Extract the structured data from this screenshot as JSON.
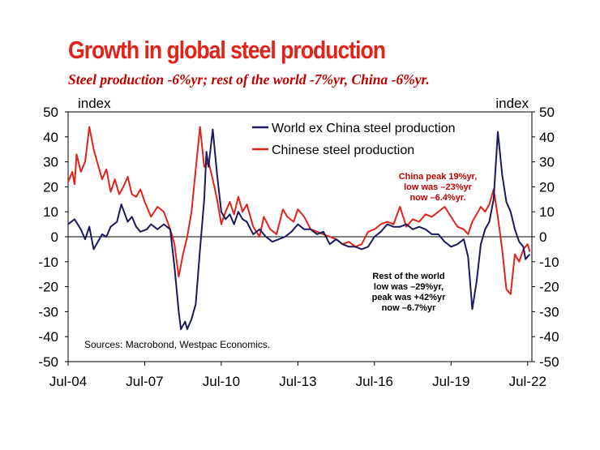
{
  "header": {
    "title": "Growth in global steel production",
    "subtitle": "Steel production -6%yr; rest of the world -7%yr, China -6%yr."
  },
  "chart_data": {
    "type": "line",
    "title": "Growth in global steel production",
    "subtitle": "Steel production -6%yr; rest of the world -7%yr, China -6%yr.",
    "left_axis_unit": "index",
    "right_axis_unit": "index",
    "ylim": [
      -50,
      50
    ],
    "yticks": [
      "50",
      "40",
      "30",
      "20",
      "10",
      "0",
      "-10",
      "-20",
      "-30",
      "-40",
      "-50"
    ],
    "xticks": [
      "Jul-04",
      "Jul-07",
      "Jul-10",
      "Jul-13",
      "Jul-16",
      "Jul-19",
      "Jul-22"
    ],
    "xlim": [
      "2004-07",
      "2022-09"
    ],
    "grid": false,
    "legend_position": "top-right",
    "series": [
      {
        "name": "World ex China steel production",
        "color": "#1a1a5e",
        "points": [
          [
            "2004-07",
            5
          ],
          [
            "2004-10",
            7
          ],
          [
            "2005-01",
            3
          ],
          [
            "2005-03",
            -1
          ],
          [
            "2005-05",
            4
          ],
          [
            "2005-07",
            -5
          ],
          [
            "2005-09",
            -2
          ],
          [
            "2005-11",
            1
          ],
          [
            "2006-01",
            0
          ],
          [
            "2006-03",
            4
          ],
          [
            "2006-06",
            6
          ],
          [
            "2006-08",
            13
          ],
          [
            "2006-11",
            6
          ],
          [
            "2007-01",
            8
          ],
          [
            "2007-03",
            4
          ],
          [
            "2007-05",
            2
          ],
          [
            "2007-08",
            3
          ],
          [
            "2007-10",
            5
          ],
          [
            "2008-01",
            3
          ],
          [
            "2008-04",
            5
          ],
          [
            "2008-07",
            3
          ],
          [
            "2008-09",
            -12
          ],
          [
            "2008-11",
            -30
          ],
          [
            "2008-12",
            -37
          ],
          [
            "2009-02",
            -34
          ],
          [
            "2009-03",
            -37
          ],
          [
            "2009-05",
            -33
          ],
          [
            "2009-07",
            -27
          ],
          [
            "2009-09",
            -5
          ],
          [
            "2009-11",
            15
          ],
          [
            "2009-12",
            34
          ],
          [
            "2010-01",
            28
          ],
          [
            "2010-03",
            43
          ],
          [
            "2010-05",
            25
          ],
          [
            "2010-07",
            10
          ],
          [
            "2010-09",
            7
          ],
          [
            "2010-11",
            9
          ],
          [
            "2011-01",
            5
          ],
          [
            "2011-03",
            10
          ],
          [
            "2011-05",
            7
          ],
          [
            "2011-07",
            6
          ],
          [
            "2011-10",
            1
          ],
          [
            "2012-01",
            3
          ],
          [
            "2012-04",
            0
          ],
          [
            "2012-07",
            -2
          ],
          [
            "2012-10",
            -1
          ],
          [
            "2013-01",
            0
          ],
          [
            "2013-04",
            2
          ],
          [
            "2013-07",
            5
          ],
          [
            "2013-10",
            3
          ],
          [
            "2014-01",
            3
          ],
          [
            "2014-04",
            1
          ],
          [
            "2014-07",
            2
          ],
          [
            "2014-10",
            -3
          ],
          [
            "2015-01",
            -1
          ],
          [
            "2015-04",
            -3
          ],
          [
            "2015-07",
            -4
          ],
          [
            "2015-10",
            -4
          ],
          [
            "2016-01",
            -5
          ],
          [
            "2016-04",
            -4
          ],
          [
            "2016-07",
            0
          ],
          [
            "2016-10",
            2
          ],
          [
            "2017-01",
            5
          ],
          [
            "2017-04",
            4
          ],
          [
            "2017-07",
            4
          ],
          [
            "2017-10",
            5
          ],
          [
            "2018-01",
            3
          ],
          [
            "2018-04",
            4
          ],
          [
            "2018-07",
            3
          ],
          [
            "2018-10",
            1
          ],
          [
            "2019-01",
            1
          ],
          [
            "2019-04",
            -2
          ],
          [
            "2019-07",
            -4
          ],
          [
            "2019-10",
            -3
          ],
          [
            "2020-01",
            -1
          ],
          [
            "2020-03",
            -8
          ],
          [
            "2020-05",
            -29
          ],
          [
            "2020-07",
            -18
          ],
          [
            "2020-09",
            -3
          ],
          [
            "2020-11",
            3
          ],
          [
            "2021-01",
            6
          ],
          [
            "2021-03",
            15
          ],
          [
            "2021-05",
            42
          ],
          [
            "2021-07",
            25
          ],
          [
            "2021-09",
            14
          ],
          [
            "2021-11",
            10
          ],
          [
            "2022-01",
            3
          ],
          [
            "2022-03",
            -2
          ],
          [
            "2022-05",
            -4
          ],
          [
            "2022-06",
            -9
          ],
          [
            "2022-08",
            -7
          ]
        ]
      },
      {
        "name": "Chinese steel production",
        "color": "#e2231a",
        "points": [
          [
            "2004-07",
            22
          ],
          [
            "2004-09",
            26
          ],
          [
            "2004-10",
            21
          ],
          [
            "2004-11",
            33
          ],
          [
            "2005-01",
            26
          ],
          [
            "2005-03",
            30
          ],
          [
            "2005-05",
            44
          ],
          [
            "2005-07",
            35
          ],
          [
            "2005-09",
            29
          ],
          [
            "2005-11",
            23
          ],
          [
            "2006-01",
            27
          ],
          [
            "2006-03",
            18
          ],
          [
            "2006-05",
            23
          ],
          [
            "2006-07",
            17
          ],
          [
            "2006-09",
            20
          ],
          [
            "2006-11",
            24
          ],
          [
            "2007-01",
            17
          ],
          [
            "2007-03",
            16
          ],
          [
            "2007-05",
            19
          ],
          [
            "2007-07",
            14
          ],
          [
            "2007-10",
            8
          ],
          [
            "2008-01",
            12
          ],
          [
            "2008-04",
            10
          ],
          [
            "2008-07",
            3
          ],
          [
            "2008-09",
            -3
          ],
          [
            "2008-11",
            -16
          ],
          [
            "2009-01",
            -7
          ],
          [
            "2009-03",
            0
          ],
          [
            "2009-05",
            10
          ],
          [
            "2009-07",
            27
          ],
          [
            "2009-09",
            44
          ],
          [
            "2009-11",
            28
          ],
          [
            "2010-01",
            30
          ],
          [
            "2010-03",
            23
          ],
          [
            "2010-05",
            15
          ],
          [
            "2010-07",
            5
          ],
          [
            "2010-09",
            10
          ],
          [
            "2010-11",
            14
          ],
          [
            "2011-01",
            9
          ],
          [
            "2011-03",
            16
          ],
          [
            "2011-05",
            10
          ],
          [
            "2011-07",
            13
          ],
          [
            "2011-10",
            4
          ],
          [
            "2012-01",
            0
          ],
          [
            "2012-03",
            8
          ],
          [
            "2012-06",
            3
          ],
          [
            "2012-09",
            1
          ],
          [
            "2012-12",
            11
          ],
          [
            "2013-02",
            8
          ],
          [
            "2013-05",
            6
          ],
          [
            "2013-07",
            11
          ],
          [
            "2013-10",
            8
          ],
          [
            "2014-01",
            3
          ],
          [
            "2014-04",
            2
          ],
          [
            "2014-07",
            1
          ],
          [
            "2014-10",
            0
          ],
          [
            "2015-01",
            -1
          ],
          [
            "2015-04",
            -3
          ],
          [
            "2015-07",
            -2
          ],
          [
            "2015-10",
            -4
          ],
          [
            "2016-01",
            -3
          ],
          [
            "2016-04",
            2
          ],
          [
            "2016-07",
            3
          ],
          [
            "2016-10",
            5
          ],
          [
            "2017-01",
            6
          ],
          [
            "2017-04",
            5
          ],
          [
            "2017-07",
            12
          ],
          [
            "2017-10",
            4
          ],
          [
            "2018-01",
            7
          ],
          [
            "2018-04",
            6
          ],
          [
            "2018-07",
            9
          ],
          [
            "2018-10",
            8
          ],
          [
            "2019-01",
            10
          ],
          [
            "2019-04",
            12
          ],
          [
            "2019-07",
            8
          ],
          [
            "2019-10",
            4
          ],
          [
            "2020-01",
            3
          ],
          [
            "2020-03",
            1
          ],
          [
            "2020-05",
            6
          ],
          [
            "2020-07",
            9
          ],
          [
            "2020-09",
            12
          ],
          [
            "2020-11",
            10
          ],
          [
            "2021-01",
            13
          ],
          [
            "2021-03",
            19
          ],
          [
            "2021-05",
            8
          ],
          [
            "2021-07",
            -5
          ],
          [
            "2021-09",
            -21
          ],
          [
            "2021-11",
            -23
          ],
          [
            "2022-01",
            -7
          ],
          [
            "2022-03",
            -10
          ],
          [
            "2022-05",
            -5
          ],
          [
            "2022-07",
            -3
          ],
          [
            "2022-08",
            -6
          ]
        ]
      }
    ],
    "annotations": {
      "china": [
        "China peak 19%yr,",
        "low was –23%yr",
        "now –6.4%yr."
      ],
      "rest_of_world": [
        "Rest of the world",
        "low was –29%yr,",
        "peak was +42%yr",
        "now –6.7%yr"
      ],
      "source": "Sources: Macrobond, Westpac Economics."
    }
  }
}
